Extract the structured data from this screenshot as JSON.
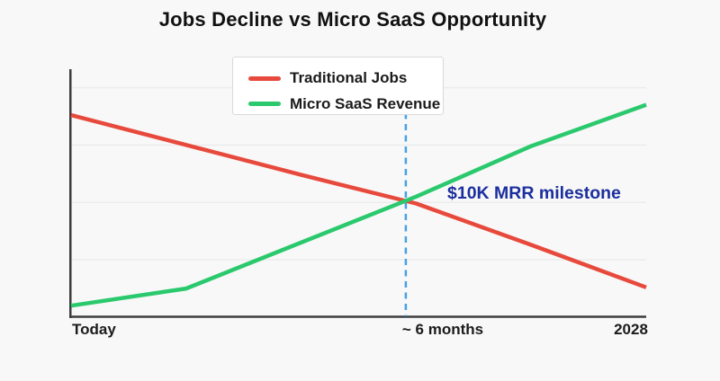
{
  "chart_data": {
    "type": "line",
    "title": "Jobs Decline vs Micro SaaS Opportunity",
    "xlabel": "",
    "ylabel": "",
    "x": [
      0,
      1,
      2,
      3,
      4,
      5
    ],
    "xlim": [
      0,
      5
    ],
    "ylim": [
      0,
      108
    ],
    "grid": "horizontal",
    "grid_y_values": [
      25,
      50,
      75,
      100
    ],
    "y_tick_labels_visible": false,
    "legend_position": "upper center",
    "x_tick_labels": [
      {
        "x": 0,
        "label": "Today"
      },
      {
        "x": 2.91,
        "label": "~ 6 months"
      },
      {
        "x": 5,
        "label": "2028"
      }
    ],
    "series": [
      {
        "name": "Traditional Jobs",
        "color": "#e74a3c",
        "values": [
          88,
          75,
          62,
          49.5,
          31.5,
          13
        ]
      },
      {
        "name": "Micro SaaS Revenue",
        "color": "#2bc96d",
        "values": [
          5,
          12.5,
          32.5,
          52.5,
          74.5,
          92.5
        ]
      }
    ],
    "annotation": {
      "label": "$10K MRR milestone",
      "x": 2.91,
      "y_top": 89,
      "y_bottom": 0,
      "line_style": "dashed",
      "line_color": "#45a1e5",
      "text_color": "#1c2f9e"
    }
  },
  "colors": {
    "background": "#f8f8f8",
    "axis_spine": "#3c3c3c",
    "gridline": "#ececec",
    "title_text": "#111111",
    "tick_text": "#1b1b1b",
    "legend_text": "#1b1b1b",
    "legend_background": "#ffffff",
    "legend_border": "#d9d9d9"
  }
}
